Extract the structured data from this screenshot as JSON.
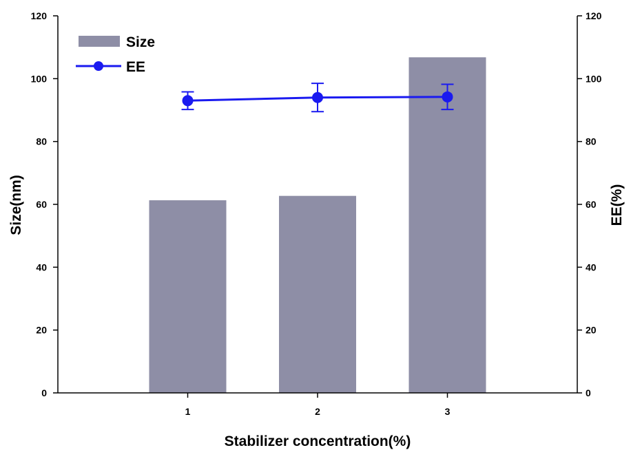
{
  "chart_data": {
    "type": "bar",
    "categories": [
      "1",
      "2",
      "3"
    ],
    "series": [
      {
        "name": "Size",
        "type": "bar",
        "axis": "left",
        "values": [
          61.3,
          62.7,
          106.8
        ]
      },
      {
        "name": "EE",
        "type": "line",
        "axis": "right",
        "values": [
          93.0,
          94.0,
          94.2
        ],
        "error": [
          2.8,
          4.5,
          4.0
        ]
      }
    ],
    "xlabel": "Stabilizer concentration(%)",
    "ylabel": "Size(nm)",
    "y2label": "EE(%)",
    "xlim": [
      0,
      4
    ],
    "ylim": [
      0,
      120
    ],
    "y2lim": [
      0,
      120
    ],
    "yticks": [
      "0",
      "20",
      "40",
      "60",
      "80",
      "100",
      "120"
    ],
    "y2ticks": [
      "0",
      "20",
      "40",
      "60",
      "80",
      "100",
      "120"
    ],
    "legend_position": "top-left",
    "grid": false,
    "colors": {
      "bar": "#8e8ea6",
      "line": "#1a1af0"
    }
  }
}
